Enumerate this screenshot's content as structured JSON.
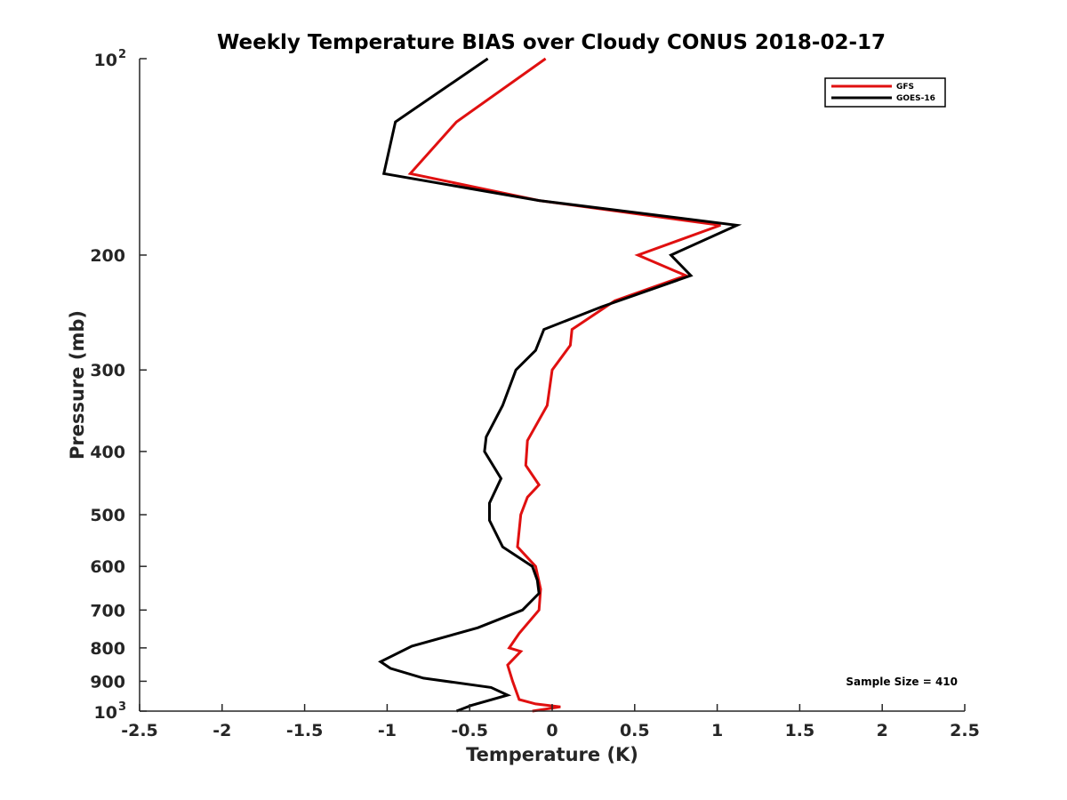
{
  "chart_data": {
    "type": "line",
    "title": "Weekly Temperature BIAS over Cloudy CONUS 2018-02-17",
    "xlabel": "Temperature (K)",
    "ylabel": "Pressure (mb)",
    "xlim": [
      -2.5,
      2.5
    ],
    "ylim": [
      100,
      1000
    ],
    "y_scale": "log",
    "y_reversed": true,
    "x_ticks": [
      {
        "value": -2.5,
        "label": "-2.5"
      },
      {
        "value": -2,
        "label": "-2"
      },
      {
        "value": -1.5,
        "label": "-1.5"
      },
      {
        "value": -1,
        "label": "-1"
      },
      {
        "value": -0.5,
        "label": "-0.5"
      },
      {
        "value": 0,
        "label": "0"
      },
      {
        "value": 0.5,
        "label": "0.5"
      },
      {
        "value": 1,
        "label": "1"
      },
      {
        "value": 1.5,
        "label": "1.5"
      },
      {
        "value": 2,
        "label": "2"
      },
      {
        "value": 2.5,
        "label": "2.5"
      }
    ],
    "y_ticks": [
      {
        "value": 100,
        "label": "10",
        "sup": "2"
      },
      {
        "value": 200,
        "label": "200"
      },
      {
        "value": 300,
        "label": "300"
      },
      {
        "value": 400,
        "label": "400"
      },
      {
        "value": 500,
        "label": "500"
      },
      {
        "value": 600,
        "label": "600"
      },
      {
        "value": 700,
        "label": "700"
      },
      {
        "value": 800,
        "label": "800"
      },
      {
        "value": 900,
        "label": "900"
      },
      {
        "value": 1000,
        "label": "10",
        "sup": "3"
      }
    ],
    "legend_position": "top-right",
    "annotation": "Sample Size = 410",
    "series": [
      {
        "name": "GFS",
        "color": "#e01010",
        "points": [
          {
            "x": -0.04,
            "y": 100
          },
          {
            "x": -0.58,
            "y": 125
          },
          {
            "x": -0.86,
            "y": 150
          },
          {
            "x": -0.08,
            "y": 165
          },
          {
            "x": 1.02,
            "y": 180
          },
          {
            "x": 0.52,
            "y": 200
          },
          {
            "x": 0.81,
            "y": 215
          },
          {
            "x": 0.38,
            "y": 235
          },
          {
            "x": 0.12,
            "y": 260
          },
          {
            "x": 0.11,
            "y": 275
          },
          {
            "x": 0.0,
            "y": 300
          },
          {
            "x": -0.03,
            "y": 340
          },
          {
            "x": -0.15,
            "y": 385
          },
          {
            "x": -0.16,
            "y": 420
          },
          {
            "x": -0.08,
            "y": 450
          },
          {
            "x": -0.15,
            "y": 470
          },
          {
            "x": -0.19,
            "y": 500
          },
          {
            "x": -0.21,
            "y": 560
          },
          {
            "x": -0.1,
            "y": 600
          },
          {
            "x": -0.07,
            "y": 650
          },
          {
            "x": -0.08,
            "y": 700
          },
          {
            "x": -0.2,
            "y": 760
          },
          {
            "x": -0.26,
            "y": 800
          },
          {
            "x": -0.19,
            "y": 810
          },
          {
            "x": -0.27,
            "y": 850
          },
          {
            "x": -0.24,
            "y": 900
          },
          {
            "x": -0.2,
            "y": 960
          },
          {
            "x": -0.1,
            "y": 975
          },
          {
            "x": 0.05,
            "y": 985
          },
          {
            "x": -0.12,
            "y": 1000
          }
        ]
      },
      {
        "name": "GOES-16",
        "color": "#000000",
        "points": [
          {
            "x": -0.39,
            "y": 100
          },
          {
            "x": -0.95,
            "y": 125
          },
          {
            "x": -1.02,
            "y": 150
          },
          {
            "x": -0.08,
            "y": 165
          },
          {
            "x": 1.12,
            "y": 180
          },
          {
            "x": 0.72,
            "y": 200
          },
          {
            "x": 0.84,
            "y": 215
          },
          {
            "x": 0.3,
            "y": 240
          },
          {
            "x": -0.05,
            "y": 260
          },
          {
            "x": -0.1,
            "y": 280
          },
          {
            "x": -0.22,
            "y": 300
          },
          {
            "x": -0.3,
            "y": 340
          },
          {
            "x": -0.4,
            "y": 380
          },
          {
            "x": -0.41,
            "y": 400
          },
          {
            "x": -0.31,
            "y": 440
          },
          {
            "x": -0.38,
            "y": 480
          },
          {
            "x": -0.38,
            "y": 510
          },
          {
            "x": -0.3,
            "y": 560
          },
          {
            "x": -0.12,
            "y": 600
          },
          {
            "x": -0.09,
            "y": 630
          },
          {
            "x": -0.08,
            "y": 660
          },
          {
            "x": -0.18,
            "y": 700
          },
          {
            "x": -0.45,
            "y": 745
          },
          {
            "x": -0.85,
            "y": 795
          },
          {
            "x": -1.04,
            "y": 840
          },
          {
            "x": -0.98,
            "y": 860
          },
          {
            "x": -0.78,
            "y": 890
          },
          {
            "x": -0.37,
            "y": 920
          },
          {
            "x": -0.27,
            "y": 945
          },
          {
            "x": -0.49,
            "y": 980
          },
          {
            "x": -0.58,
            "y": 1000
          }
        ]
      }
    ]
  }
}
